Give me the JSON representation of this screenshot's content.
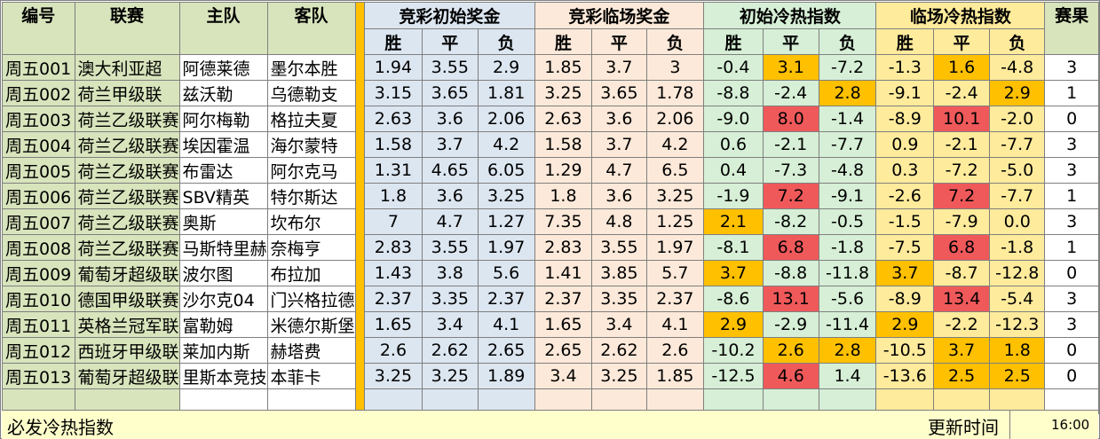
{
  "headers": {
    "id": "编号",
    "league": "联赛",
    "home": "主队",
    "away": "客队",
    "init_odds": "竞彩初始奖金",
    "live_odds": "竞彩临场奖金",
    "init_heat": "初始冷热指数",
    "live_heat": "临场冷热指数",
    "result": "赛果",
    "win": "胜",
    "draw": "平",
    "lose": "负"
  },
  "colors": {
    "orange": "#ffc000",
    "red": "#f0595a"
  },
  "rows": [
    {
      "id": "周五001",
      "league": "澳大利亚超",
      "home": "阿德莱德",
      "away": "墨尔本胜",
      "io": [
        "1.94",
        "3.55",
        "2.9"
      ],
      "lo": [
        "1.85",
        "3.7",
        "3"
      ],
      "ih": [
        "-0.4",
        "3.1",
        "-7.2"
      ],
      "lh": [
        "-1.3",
        "1.6",
        "-4.8"
      ],
      "res": "3",
      "ihc": [
        "",
        "o",
        ""
      ],
      "lhc": [
        "",
        "o",
        ""
      ]
    },
    {
      "id": "周五002",
      "league": "荷兰甲级联",
      "home": "兹沃勒",
      "away": "乌德勒支",
      "io": [
        "3.15",
        "3.65",
        "1.81"
      ],
      "lo": [
        "3.25",
        "3.65",
        "1.78"
      ],
      "ih": [
        "-8.8",
        "-2.4",
        "2.8"
      ],
      "lh": [
        "-9.1",
        "-2.4",
        "2.9"
      ],
      "res": "1",
      "ihc": [
        "",
        "",
        "o"
      ],
      "lhc": [
        "",
        "",
        "o"
      ]
    },
    {
      "id": "周五003",
      "league": "荷兰乙级联赛",
      "home": "阿尔梅勒",
      "away": "格拉夫夏",
      "io": [
        "2.63",
        "3.6",
        "2.06"
      ],
      "lo": [
        "2.63",
        "3.6",
        "2.06"
      ],
      "ih": [
        "-9.0",
        "8.0",
        "-1.4"
      ],
      "lh": [
        "-8.9",
        "10.1",
        "-2.0"
      ],
      "res": "0",
      "ihc": [
        "",
        "r",
        ""
      ],
      "lhc": [
        "",
        "r",
        ""
      ]
    },
    {
      "id": "周五004",
      "league": "荷兰乙级联赛",
      "home": "埃因霍温",
      "away": "海尔蒙特",
      "io": [
        "1.58",
        "3.7",
        "4.2"
      ],
      "lo": [
        "1.58",
        "3.7",
        "4.2"
      ],
      "ih": [
        "0.6",
        "-2.1",
        "-7.7"
      ],
      "lh": [
        "0.9",
        "-2.1",
        "-7.7"
      ],
      "res": "3",
      "ihc": [
        "",
        "",
        ""
      ],
      "lhc": [
        "",
        "",
        ""
      ]
    },
    {
      "id": "周五005",
      "league": "荷兰乙级联赛",
      "home": "布雷达",
      "away": "阿尔克马",
      "io": [
        "1.31",
        "4.65",
        "6.05"
      ],
      "lo": [
        "1.29",
        "4.7",
        "6.5"
      ],
      "ih": [
        "0.4",
        "-7.3",
        "-4.8"
      ],
      "lh": [
        "0.3",
        "-7.2",
        "-5.0"
      ],
      "res": "3",
      "ihc": [
        "",
        "",
        ""
      ],
      "lhc": [
        "",
        "",
        ""
      ]
    },
    {
      "id": "周五006",
      "league": "荷兰乙级联赛",
      "home": "SBV精英",
      "away": "特尔斯达",
      "io": [
        "1.8",
        "3.6",
        "3.25"
      ],
      "lo": [
        "1.8",
        "3.6",
        "3.25"
      ],
      "ih": [
        "-1.9",
        "7.2",
        "-9.1"
      ],
      "lh": [
        "-2.6",
        "7.2",
        "-7.7"
      ],
      "res": "1",
      "ihc": [
        "",
        "r",
        ""
      ],
      "lhc": [
        "",
        "r",
        ""
      ]
    },
    {
      "id": "周五007",
      "league": "荷兰乙级联赛",
      "home": "奥斯",
      "away": "坎布尔",
      "io": [
        "7",
        "4.7",
        "1.27"
      ],
      "lo": [
        "7.35",
        "4.8",
        "1.25"
      ],
      "ih": [
        "2.1",
        "-8.2",
        "-0.5"
      ],
      "lh": [
        "-1.5",
        "-7.9",
        "0.0"
      ],
      "res": "3",
      "ihc": [
        "o",
        "",
        ""
      ],
      "lhc": [
        "",
        "",
        ""
      ]
    },
    {
      "id": "周五008",
      "league": "荷兰乙级联赛",
      "home": "马斯特里赫",
      "away": "奈梅亨",
      "io": [
        "2.83",
        "3.55",
        "1.97"
      ],
      "lo": [
        "2.83",
        "3.55",
        "1.97"
      ],
      "ih": [
        "-8.1",
        "6.8",
        "-1.8"
      ],
      "lh": [
        "-7.5",
        "6.8",
        "-1.8"
      ],
      "res": "1",
      "ihc": [
        "",
        "r",
        ""
      ],
      "lhc": [
        "",
        "r",
        ""
      ]
    },
    {
      "id": "周五009",
      "league": "葡萄牙超级联",
      "home": "波尔图",
      "away": "布拉加",
      "io": [
        "1.43",
        "3.8",
        "5.6"
      ],
      "lo": [
        "1.41",
        "3.85",
        "5.7"
      ],
      "ih": [
        "3.7",
        "-8.8",
        "-11.8"
      ],
      "lh": [
        "3.7",
        "-8.7",
        "-12.8"
      ],
      "res": "0",
      "ihc": [
        "o",
        "",
        ""
      ],
      "lhc": [
        "o",
        "",
        ""
      ]
    },
    {
      "id": "周五010",
      "league": "德国甲级联赛",
      "home": "沙尔克04",
      "away": "门兴格拉德",
      "io": [
        "2.37",
        "3.35",
        "2.37"
      ],
      "lo": [
        "2.37",
        "3.35",
        "2.37"
      ],
      "ih": [
        "-8.6",
        "13.1",
        "-5.6"
      ],
      "lh": [
        "-8.9",
        "13.4",
        "-5.4"
      ],
      "res": "3",
      "ihc": [
        "",
        "r",
        ""
      ],
      "lhc": [
        "",
        "r",
        ""
      ]
    },
    {
      "id": "周五011",
      "league": "英格兰冠军联",
      "home": "富勒姆",
      "away": "米德尔斯堡",
      "io": [
        "1.65",
        "3.4",
        "4.1"
      ],
      "lo": [
        "1.65",
        "3.4",
        "4.1"
      ],
      "ih": [
        "2.9",
        "-2.9",
        "-11.4"
      ],
      "lh": [
        "2.9",
        "-2.2",
        "-12.3"
      ],
      "res": "3",
      "ihc": [
        "o",
        "",
        ""
      ],
      "lhc": [
        "o",
        "",
        ""
      ]
    },
    {
      "id": "周五012",
      "league": "西班牙甲级联",
      "home": "莱加内斯",
      "away": "赫塔费",
      "io": [
        "2.6",
        "2.62",
        "2.65"
      ],
      "lo": [
        "2.65",
        "2.62",
        "2.6"
      ],
      "ih": [
        "-10.2",
        "2.6",
        "2.8"
      ],
      "lh": [
        "-10.5",
        "3.7",
        "1.8"
      ],
      "res": "0",
      "ihc": [
        "",
        "o",
        "o"
      ],
      "lhc": [
        "",
        "o",
        "o"
      ]
    },
    {
      "id": "周五013",
      "league": "葡萄牙超级联",
      "home": "里斯本竞技",
      "away": "本菲卡",
      "io": [
        "3.25",
        "3.25",
        "1.89"
      ],
      "lo": [
        "3.4",
        "3.25",
        "1.85"
      ],
      "ih": [
        "-12.5",
        "4.6",
        "1.4"
      ],
      "lh": [
        "-13.6",
        "2.5",
        "2.5"
      ],
      "res": "0",
      "ihc": [
        "",
        "r",
        ""
      ],
      "lhc": [
        "",
        "o",
        "o"
      ]
    }
  ],
  "footer": {
    "title": "必发冷热指数",
    "update_label": "更新时间",
    "update_time": "16:00"
  }
}
